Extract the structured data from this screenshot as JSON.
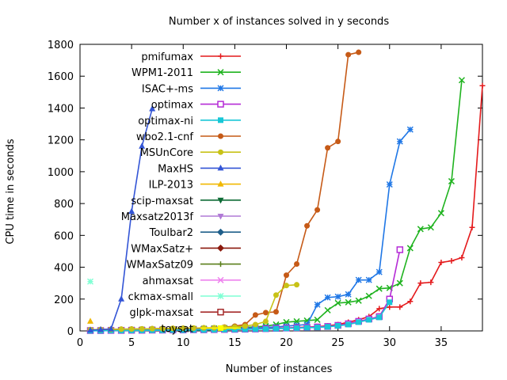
{
  "chart_data": {
    "type": "line",
    "title": "Number x of instances solved in y seconds",
    "xlabel": "Number of instances",
    "ylabel": "CPU time in seconds",
    "xlim": [
      0,
      39
    ],
    "ylim": [
      0,
      1800
    ],
    "xticks": [
      0,
      5,
      10,
      15,
      20,
      25,
      30,
      35
    ],
    "yticks": [
      0,
      200,
      400,
      600,
      800,
      1000,
      1200,
      1400,
      1600,
      1800
    ],
    "grid": false,
    "legend_position": "top-left",
    "series": [
      {
        "name": "pmifumax",
        "color": "#e41a1c",
        "marker": "plus",
        "x": [
          1,
          2,
          3,
          4,
          5,
          6,
          7,
          8,
          9,
          10,
          11,
          12,
          13,
          14,
          15,
          16,
          17,
          18,
          19,
          20,
          21,
          22,
          23,
          24,
          25,
          26,
          27,
          28,
          29,
          30,
          31,
          32,
          33,
          34,
          35,
          36,
          37,
          38,
          39
        ],
        "y": [
          3,
          3,
          4,
          4,
          5,
          5,
          6,
          6,
          7,
          7,
          8,
          8,
          9,
          10,
          11,
          12,
          13,
          15,
          17,
          19,
          21,
          24,
          27,
          32,
          40,
          55,
          70,
          90,
          140,
          150,
          150,
          185,
          300,
          305,
          430,
          440,
          460,
          650,
          1540
        ]
      },
      {
        "name": "WPM1-2011",
        "color": "#1fb31f",
        "marker": "x",
        "x": [
          1,
          2,
          3,
          4,
          5,
          6,
          7,
          8,
          9,
          10,
          11,
          12,
          13,
          14,
          15,
          16,
          17,
          18,
          19,
          20,
          21,
          22,
          23,
          24,
          25,
          26,
          27,
          28,
          29,
          30,
          31,
          32,
          33,
          34,
          35,
          36,
          37
        ],
        "y": [
          5,
          5,
          6,
          6,
          7,
          8,
          9,
          10,
          11,
          12,
          13,
          14,
          16,
          18,
          20,
          22,
          25,
          30,
          40,
          55,
          60,
          65,
          70,
          130,
          175,
          180,
          190,
          220,
          265,
          270,
          300,
          520,
          640,
          650,
          740,
          940,
          1575
        ]
      },
      {
        "name": "ISAC+-ms",
        "color": "#1f77e6",
        "marker": "star",
        "x": [
          1,
          2,
          3,
          4,
          5,
          6,
          7,
          8,
          9,
          10,
          11,
          12,
          13,
          14,
          15,
          16,
          17,
          18,
          19,
          20,
          21,
          22,
          23,
          24,
          25,
          26,
          27,
          28,
          29,
          30,
          31,
          32
        ],
        "y": [
          3,
          3,
          4,
          4,
          5,
          5,
          6,
          6,
          7,
          8,
          9,
          10,
          11,
          12,
          14,
          16,
          18,
          22,
          25,
          30,
          35,
          40,
          165,
          210,
          215,
          230,
          320,
          320,
          370,
          920,
          1190,
          1265
        ]
      },
      {
        "name": "optimax",
        "color": "#b52bd6",
        "marker": "open-square",
        "x": [
          1,
          2,
          3,
          4,
          5,
          6,
          7,
          8,
          9,
          10,
          11,
          12,
          13,
          14,
          15,
          16,
          17,
          18,
          19,
          20,
          21,
          22,
          23,
          24,
          25,
          26,
          27,
          28,
          29,
          30,
          31
        ],
        "y": [
          2,
          2,
          3,
          3,
          4,
          4,
          5,
          5,
          6,
          6,
          7,
          7,
          8,
          9,
          10,
          11,
          12,
          14,
          16,
          18,
          20,
          22,
          25,
          28,
          35,
          45,
          60,
          75,
          90,
          200,
          510
        ]
      },
      {
        "name": "optimax-ni",
        "color": "#18c7d6",
        "marker": "filled-square",
        "x": [
          1,
          2,
          3,
          4,
          5,
          6,
          7,
          8,
          9,
          10,
          11,
          12,
          13,
          14,
          15,
          16,
          17,
          18,
          19,
          20,
          21,
          22,
          23,
          24,
          25,
          26,
          27,
          28,
          29,
          30
        ],
        "y": [
          1,
          1,
          2,
          2,
          3,
          3,
          4,
          4,
          5,
          5,
          6,
          6,
          7,
          8,
          9,
          10,
          11,
          12,
          14,
          16,
          18,
          20,
          22,
          26,
          32,
          40,
          55,
          70,
          85,
          180
        ]
      },
      {
        "name": "wbo2.1-cnf",
        "color": "#c65a17",
        "marker": "filled-circle",
        "x": [
          1,
          2,
          3,
          4,
          5,
          6,
          7,
          8,
          9,
          10,
          11,
          12,
          13,
          14,
          15,
          16,
          17,
          18,
          19,
          20,
          21,
          22,
          23,
          24,
          25,
          26,
          27
        ],
        "y": [
          8,
          9,
          10,
          11,
          12,
          13,
          14,
          15,
          16,
          17,
          18,
          19,
          20,
          24,
          30,
          40,
          100,
          115,
          120,
          350,
          420,
          660,
          760,
          1150,
          1190,
          1735,
          1750
        ]
      },
      {
        "name": "MSUnCore",
        "color": "#c8c217",
        "marker": "filled-circle",
        "x": [
          1,
          2,
          3,
          4,
          5,
          6,
          7,
          8,
          9,
          10,
          11,
          12,
          13,
          14,
          15,
          16,
          17,
          18,
          19,
          20,
          21
        ],
        "y": [
          8,
          9,
          10,
          11,
          12,
          13,
          14,
          15,
          16,
          17,
          18,
          19,
          20,
          22,
          25,
          30,
          40,
          60,
          225,
          285,
          290
        ]
      },
      {
        "name": "MaxHS",
        "color": "#3355d6",
        "marker": "filled-triangle",
        "x": [
          1,
          2,
          3,
          4,
          5,
          6,
          7
        ],
        "y": [
          5,
          8,
          12,
          200,
          750,
          1160,
          1395
        ]
      },
      {
        "name": "ILP-2013",
        "color": "#f0b800",
        "marker": "filled-triangle",
        "x": [
          1
        ],
        "y": [
          60
        ]
      },
      {
        "name": "scip-maxsat",
        "color": "#0d6b35",
        "marker": "filled-triangle-down",
        "x": [],
        "y": []
      },
      {
        "name": "Maxsatz2013f",
        "color": "#b07ad6",
        "marker": "filled-triangle-down",
        "x": [],
        "y": []
      },
      {
        "name": "Toulbar2",
        "color": "#1f5f8a",
        "marker": "filled-diamond",
        "x": [],
        "y": []
      },
      {
        "name": "WMaxSatz+",
        "color": "#8b1a0e",
        "marker": "filled-diamond",
        "x": [],
        "y": []
      },
      {
        "name": "WMaxSatz09",
        "color": "#5a7f1a",
        "marker": "plus",
        "x": [],
        "y": []
      },
      {
        "name": "ahmaxsat",
        "color": "#ee82ee",
        "marker": "x",
        "x": [],
        "y": []
      },
      {
        "name": "ckmax-small",
        "color": "#7fffd4",
        "marker": "star",
        "x": [
          1
        ],
        "y": [
          310
        ]
      },
      {
        "name": "glpk-maxsat",
        "color": "#a52a2a",
        "marker": "open-square",
        "x": [],
        "y": []
      },
      {
        "name": "toysat",
        "color": "#ffff00",
        "marker": "filled-square",
        "x": [],
        "y": []
      }
    ]
  }
}
